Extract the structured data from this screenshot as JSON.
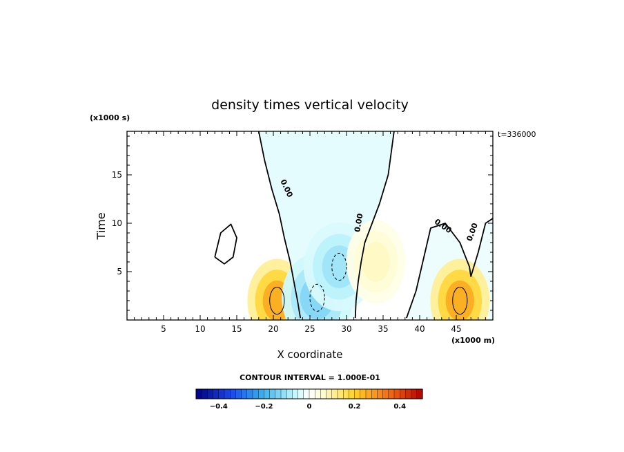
{
  "chart_data": {
    "type": "heatmap",
    "title": "density times vertical velocity",
    "xlabel": "X coordinate",
    "ylabel": "Time",
    "x_units": "(x1000 m)",
    "y_units": "(x1000 s)",
    "time_stamp": "t=336000",
    "xlim": [
      0,
      50
    ],
    "ylim": [
      0,
      19.5
    ],
    "x_ticks": [
      5,
      10,
      15,
      20,
      25,
      30,
      35,
      40,
      45
    ],
    "x_tick_labels": [
      "5",
      "10",
      "15",
      "20",
      "25",
      "30",
      "35",
      "40",
      "45"
    ],
    "y_ticks": [
      5,
      10,
      15
    ],
    "y_tick_labels": [
      "5",
      "10",
      "15"
    ],
    "contour_interval_text": "CONTOUR INTERVAL = 1.000E-01",
    "contour_label": "0.00",
    "colorbar": {
      "min": -0.5,
      "max": 0.5,
      "ticks": [
        -0.4,
        -0.2,
        0,
        0.2,
        0.4
      ],
      "tick_labels": [
        "-0.4",
        "-0.2",
        "0",
        "0.2",
        "0.4"
      ]
    },
    "zero_contours": [
      {
        "name": "central-left",
        "x": [
          18.0,
          18.8,
          19.8,
          20.8,
          21.5,
          22.3,
          22.8,
          23.3,
          23.7
        ],
        "y": [
          19.5,
          16.5,
          13.5,
          11.0,
          8.5,
          6.0,
          4.0,
          2.0,
          0.2
        ]
      },
      {
        "name": "central-right",
        "x": [
          36.5,
          35.7,
          34.5,
          33.5,
          32.5,
          32.0,
          31.6,
          31.3,
          31.2
        ],
        "y": [
          19.5,
          15.0,
          12.0,
          10.0,
          8.0,
          6.0,
          4.0,
          2.0,
          0.2
        ]
      },
      {
        "name": "right-lobe",
        "x": [
          38.2,
          39.5,
          41.5,
          43.5,
          45.5,
          46.8,
          47.0,
          48.0,
          49.0,
          50.0
        ],
        "y": [
          0.2,
          3.0,
          9.5,
          10.0,
          8.0,
          5.5,
          4.5,
          7.0,
          10.0,
          10.5
        ]
      },
      {
        "name": "small-loop",
        "x": [
          12.0,
          13.3,
          14.5,
          15.0,
          14.2,
          12.8,
          12.0
        ],
        "y": [
          6.5,
          5.8,
          6.5,
          8.5,
          9.9,
          9.0,
          6.5
        ]
      }
    ],
    "features": [
      {
        "sign": "positive",
        "x": 20.5,
        "y": 2.0,
        "value": 0.3
      },
      {
        "sign": "positive",
        "x": 45.5,
        "y": 2.0,
        "value": 0.3
      },
      {
        "sign": "negative",
        "x": 26.0,
        "y": 2.3,
        "value": -0.15
      },
      {
        "sign": "negative",
        "x": 29.0,
        "y": 5.5,
        "value": -0.12
      },
      {
        "sign": "positive",
        "x": 34.0,
        "y": 6.0,
        "value": 0.08
      }
    ]
  }
}
